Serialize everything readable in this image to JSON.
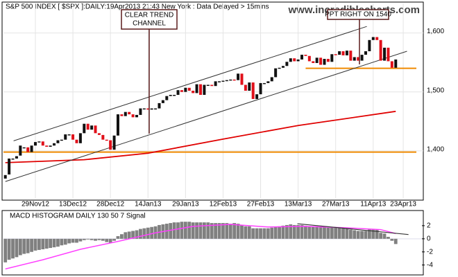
{
  "chart_data": {
    "type": "candlestick",
    "title": "S&P 500 INDEX [ $SPX ]:DAILY:19Apr2013 21:43 New York : Data Delayed > 15mins",
    "watermark": "www.incrediblecharts.com",
    "open": [
      1353,
      1360,
      1386,
      1387,
      1392,
      1406,
      1406,
      1398,
      1409,
      1416,
      1416,
      1409,
      1407,
      1409,
      1413,
      1418,
      1419,
      1428,
      1428,
      1419,
      1413,
      1430,
      1446,
      1436,
      1443,
      1430,
      1427,
      1419,
      1418,
      1402,
      1426,
      1462,
      1459,
      1466,
      1462,
      1457,
      1461,
      1472,
      1472,
      1470,
      1472,
      1472,
      1481,
      1486,
      1493,
      1495,
      1495,
      1503,
      1500,
      1507,
      1502,
      1498,
      1513,
      1495,
      1512,
      1512,
      1510,
      1518,
      1518,
      1519,
      1520,
      1521,
      1520,
      1531,
      1512,
      1502,
      1516,
      1488,
      1496,
      1515,
      1515,
      1518,
      1525,
      1540,
      1541,
      1544,
      1551,
      1557,
      1552,
      1555,
      1563,
      1561,
      1552,
      1549,
      1558,
      1546,
      1556,
      1551,
      1564,
      1563,
      1569,
      1562,
      1570,
      1553,
      1559,
      1553,
      1563,
      1569,
      1588,
      1593,
      1588,
      1553,
      1575,
      1552,
      1541
    ],
    "close": [
      1359,
      1387,
      1387,
      1391,
      1409,
      1406,
      1398,
      1409,
      1415,
      1416,
      1409,
      1407,
      1409,
      1413,
      1418,
      1419,
      1428,
      1428,
      1419,
      1413,
      1430,
      1446,
      1436,
      1443,
      1430,
      1427,
      1419,
      1418,
      1402,
      1426,
      1462,
      1459,
      1466,
      1462,
      1457,
      1461,
      1472,
      1472,
      1470,
      1472,
      1472,
      1481,
      1486,
      1493,
      1495,
      1495,
      1503,
      1500,
      1507,
      1502,
      1498,
      1513,
      1495,
      1512,
      1512,
      1510,
      1518,
      1518,
      1519,
      1520,
      1521,
      1520,
      1531,
      1512,
      1502,
      1516,
      1488,
      1496,
      1515,
      1515,
      1518,
      1525,
      1540,
      1541,
      1544,
      1551,
      1557,
      1552,
      1555,
      1563,
      1561,
      1552,
      1549,
      1558,
      1546,
      1556,
      1551,
      1564,
      1563,
      1569,
      1562,
      1570,
      1553,
      1559,
      1553,
      1563,
      1569,
      1588,
      1593,
      1588,
      1553,
      1575,
      1552,
      1541,
      1555
    ],
    "up_color": "#111111",
    "down_color": "#e0101a",
    "xlim": [
      -0.5,
      109.5
    ],
    "xticks": [
      {
        "value": 8,
        "label": "29Nov12"
      },
      {
        "value": 18,
        "label": "13Dec12"
      },
      {
        "value": 28,
        "label": "28Dec12"
      },
      {
        "value": 38,
        "label": "14Jan13"
      },
      {
        "value": 48,
        "label": "29Jan13"
      },
      {
        "value": 58,
        "label": "12Feb13"
      },
      {
        "value": 68,
        "label": "27Feb13"
      },
      {
        "value": 78,
        "label": "13Mar13"
      },
      {
        "value": 88,
        "label": "27Mar13"
      },
      {
        "value": 98,
        "label": "11Apr13"
      },
      {
        "value": 106,
        "label": "23Apr13"
      }
    ],
    "ylim": [
      1320,
      1650
    ],
    "yticks": [
      {
        "value": 1400,
        "label": "1,400"
      },
      {
        "value": 1500,
        "label": "1,500"
      },
      {
        "value": 1600,
        "label": "1,600"
      }
    ],
    "grid": true,
    "moving_average": {
      "color": "#e00000",
      "x": [
        0,
        21,
        38,
        58,
        78,
        104
      ],
      "values": [
        1380,
        1385,
        1396,
        1420,
        1443,
        1467
      ]
    },
    "trendlines": [
      {
        "color": "#333333",
        "x": [
          0,
          107
        ],
        "values": [
          1348,
          1569
        ]
      },
      {
        "color": "#333333",
        "x": [
          2.2,
          96.3
        ],
        "values": [
          1417,
          1611
        ]
      }
    ],
    "levels": [
      {
        "color": "#f08a00",
        "value": 1398,
        "x": [
          -0.5,
          109.5
        ]
      },
      {
        "color": "#f08a00",
        "value": 1540,
        "x": [
          80,
          109.5
        ]
      }
    ],
    "annotations": [
      {
        "lines": [
          "CLEAR TREND",
          "CHANNEL"
        ]
      },
      {
        "lines": [
          "PPT RIGHT ON 1540"
        ]
      }
    ],
    "macd": {
      "title": "MACD HISTOGRAM DAILY 130 50 7 Signal",
      "bar_color": "#808080",
      "histogram": [
        -3.6,
        -3.2,
        -3.0,
        -2.8,
        -2.5,
        -2.3,
        -2.2,
        -2.0,
        -1.8,
        -1.7,
        -1.6,
        -1.5,
        -1.4,
        -1.3,
        -1.2,
        -1.0,
        -0.9,
        -0.7,
        -0.6,
        -0.6,
        -0.4,
        -0.2,
        -0.1,
        -0.2,
        -0.3,
        -0.2,
        -0.3,
        -0.5,
        -0.6,
        -0.3,
        0.4,
        0.7,
        1.0,
        1.1,
        1.2,
        1.3,
        1.5,
        1.6,
        1.7,
        1.8,
        1.9,
        2.1,
        2.2,
        2.3,
        2.4,
        2.5,
        2.5,
        2.6,
        2.6,
        2.6,
        2.5,
        2.5,
        2.5,
        2.5,
        2.5,
        2.4,
        2.4,
        2.4,
        2.4,
        2.4,
        2.3,
        2.4,
        2.3,
        2.1,
        1.9,
        1.9,
        1.6,
        1.6,
        1.6,
        1.6,
        1.6,
        1.7,
        1.8,
        1.9,
        2.0,
        2.1,
        2.2,
        2.1,
        2.1,
        2.1,
        2.0,
        1.9,
        1.9,
        1.9,
        1.8,
        1.8,
        1.7,
        1.7,
        1.7,
        1.7,
        1.6,
        1.6,
        1.4,
        1.3,
        1.2,
        1.2,
        1.2,
        1.4,
        1.5,
        1.4,
        0.9,
        0.8,
        0.3,
        -0.3,
        -0.8
      ],
      "signal": {
        "color": "#ff40ff",
        "x": [
          0,
          10,
          20,
          30,
          40,
          50,
          60,
          70,
          80,
          90,
          100,
          104
        ],
        "values": [
          -4.6,
          -3.2,
          -1.6,
          -0.4,
          0.9,
          1.9,
          2.2,
          1.8,
          1.9,
          1.7,
          1.4,
          0.8
        ]
      },
      "trendline": {
        "color": "#333333",
        "x": [
          77.8,
          107.4
        ],
        "values": [
          2.3,
          0.65
        ]
      },
      "ylim": [
        -5.3,
        4.1
      ],
      "yticks": [
        2,
        0,
        -2,
        -4
      ]
    }
  }
}
